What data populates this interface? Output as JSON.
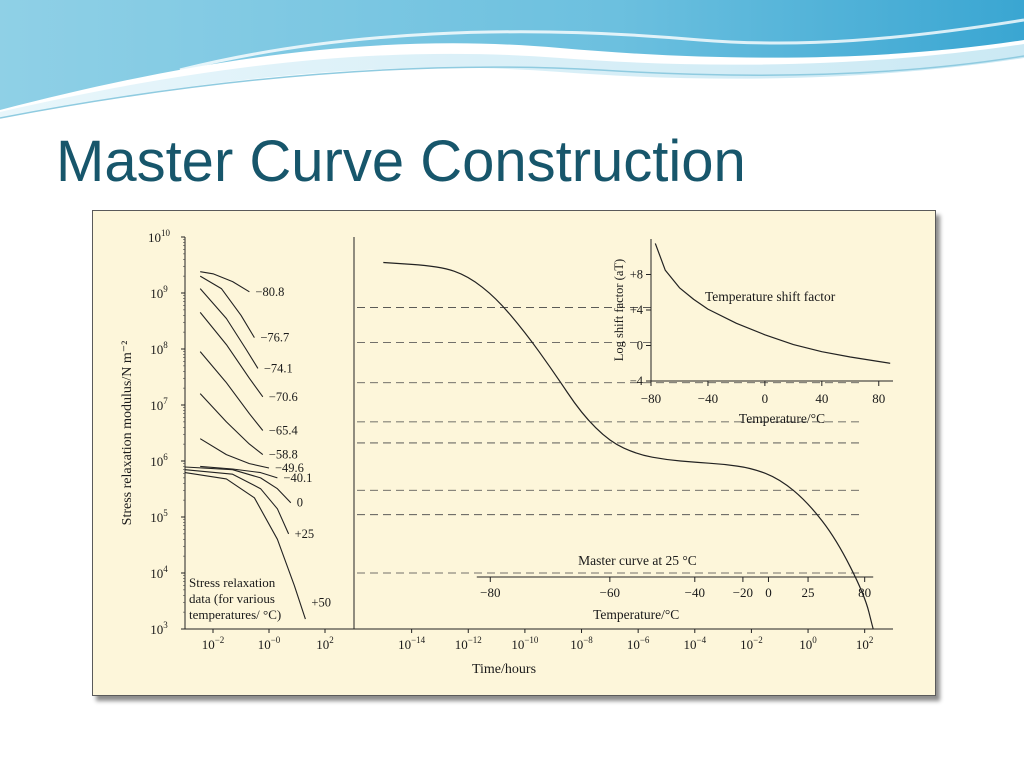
{
  "slide": {
    "title": "Master Curve Construction"
  },
  "chart_data": {
    "type": "line",
    "ylabel": "Stress relaxation modulus/N m⁻²",
    "xlabel": "Time/hours",
    "y_scale": "log",
    "ylim": [
      1000,
      10000000000
    ],
    "y_ticks": [
      {
        "value": 1000,
        "base": "10",
        "exp": "3"
      },
      {
        "value": 10000,
        "base": "10",
        "exp": "4"
      },
      {
        "value": 100000,
        "base": "10",
        "exp": "5"
      },
      {
        "value": 1000000,
        "base": "10",
        "exp": "6"
      },
      {
        "value": 10000000,
        "base": "10",
        "exp": "7"
      },
      {
        "value": 100000000,
        "base": "10",
        "exp": "8"
      },
      {
        "value": 1000000000,
        "base": "10",
        "exp": "9"
      },
      {
        "value": 10000000000,
        "base": "10",
        "exp": "10"
      }
    ],
    "panels": [
      {
        "name": "stress-relaxation-data",
        "annotation": [
          "Stress relaxation",
          "data (for various",
          "temperatures/ °C)"
        ],
        "x_scale": "log",
        "xlim": [
          0.001,
          1000
        ],
        "x_ticks": [
          {
            "value": 0.01,
            "base": "10",
            "exp": "−2"
          },
          {
            "value": 1,
            "base": "10",
            "exp": "−0"
          },
          {
            "value": 100,
            "base": "10",
            "exp": "2"
          }
        ],
        "series": [
          {
            "label": "−80.8",
            "points": [
              [
                0.0035,
                2400000000.0
              ],
              [
                0.01,
                2200000000.0
              ],
              [
                0.05,
                1600000000.0
              ],
              [
                0.2,
                1050000000.0
              ]
            ]
          },
          {
            "label": "−76.7",
            "points": [
              [
                0.0035,
                2000000000.0
              ],
              [
                0.02,
                1200000000.0
              ],
              [
                0.1,
                400000000.0
              ],
              [
                0.3,
                160000000.0
              ]
            ]
          },
          {
            "label": "−74.1",
            "points": [
              [
                0.0035,
                1200000000.0
              ],
              [
                0.03,
                350000000.0
              ],
              [
                0.15,
                100000000.0
              ],
              [
                0.4,
                45000000.0
              ]
            ]
          },
          {
            "label": "−70.6",
            "points": [
              [
                0.0035,
                450000000.0
              ],
              [
                0.03,
                120000000.0
              ],
              [
                0.2,
                30000000.0
              ],
              [
                0.6,
                14000000.0
              ]
            ]
          },
          {
            "label": "−65.4",
            "points": [
              [
                0.0035,
                90000000.0
              ],
              [
                0.03,
                25000000.0
              ],
              [
                0.2,
                7000000.0
              ],
              [
                0.6,
                3500000.0
              ]
            ]
          },
          {
            "label": "−58.8",
            "points": [
              [
                0.0035,
                16000000.0
              ],
              [
                0.03,
                5000000.0
              ],
              [
                0.2,
                2000000.0
              ],
              [
                0.6,
                1300000.0
              ]
            ]
          },
          {
            "label": "−49.6",
            "points": [
              [
                0.0035,
                2500000.0
              ],
              [
                0.03,
                1300000.0
              ],
              [
                0.2,
                900000.0
              ],
              [
                1,
                750000.0
              ]
            ]
          },
          {
            "label": "−40.1",
            "points": [
              [
                0.0035,
                800000.0
              ],
              [
                0.05,
                720000.0
              ],
              [
                0.5,
                620000.0
              ],
              [
                2,
                500000.0
              ]
            ]
          },
          {
            "label": "0",
            "points": [
              [
                0.001,
                780000.0
              ],
              [
                0.05,
                700000.0
              ],
              [
                0.5,
                500000.0
              ],
              [
                2,
                320000.0
              ],
              [
                6,
                180000.0
              ]
            ]
          },
          {
            "label": "+25",
            "points": [
              [
                0.001,
                700000.0
              ],
              [
                0.05,
                580000.0
              ],
              [
                0.5,
                320000.0
              ],
              [
                2,
                140000.0
              ],
              [
                5,
                50000.0
              ]
            ]
          },
          {
            "label": "+50",
            "points": [
              [
                0.001,
                620000.0
              ],
              [
                0.03,
                480000.0
              ],
              [
                0.3,
                220000.0
              ],
              [
                2,
                40000.0
              ],
              [
                8,
                6000.0
              ],
              [
                20,
                1500.0
              ]
            ]
          }
        ]
      },
      {
        "name": "master-curve",
        "annotation": [
          "Master curve at 25 °C"
        ],
        "x_scale": "log",
        "xlim": [
          1e-16,
          1000
        ],
        "x_ticks": [
          {
            "value": 1e-14,
            "base": "10",
            "exp": "−14"
          },
          {
            "value": 1e-12,
            "base": "10",
            "exp": "−12"
          },
          {
            "value": 1e-10,
            "base": "10",
            "exp": "−10"
          },
          {
            "value": 1e-08,
            "base": "10",
            "exp": "−8"
          },
          {
            "value": 1e-06,
            "base": "10",
            "exp": "−6"
          },
          {
            "value": 0.0001,
            "base": "10",
            "exp": "−4"
          },
          {
            "value": 0.01,
            "base": "10",
            "exp": "−2"
          },
          {
            "value": 1,
            "base": "10",
            "exp": "0"
          },
          {
            "value": 100,
            "base": "10",
            "exp": "2"
          }
        ],
        "series": [
          {
            "label": "Master curve at 25 °C",
            "points": [
              [
                1e-15,
                3500000000.0
              ],
              [
                1e-13,
                3000000000.0
              ],
              [
                1e-12,
                2000000000.0
              ],
              [
                1e-11,
                800000000.0
              ],
              [
                1e-10,
                200000000.0
              ],
              [
                1e-09,
                40000000.0
              ],
              [
                1e-08,
                7000000.0
              ],
              [
                1e-07,
                2200000.0
              ],
              [
                1e-06,
                1300000.0
              ],
              [
                1e-05,
                1050000.0
              ],
              [
                0.0001,
                950000.0
              ],
              [
                0.001,
                880000.0
              ],
              [
                0.01,
                750000.0
              ],
              [
                0.1,
                480000.0
              ],
              [
                1,
                180000.0
              ],
              [
                10,
                40000.0
              ],
              [
                100,
                4000.0
              ],
              [
                200,
                1000.0
              ]
            ]
          }
        ],
        "temperature_axis": {
          "label": "Temperature/°C",
          "ticks": [
            {
              "label": "−80",
              "t": 6e-12
            },
            {
              "label": "−60",
              "t": 1e-07
            },
            {
              "label": "−40",
              "t": 0.0001
            },
            {
              "label": "−20",
              "t": 0.005
            },
            {
              "label": "0",
              "t": 0.04
            },
            {
              "label": "25",
              "t": 1
            },
            {
              "label": "80",
              "t": 100
            }
          ]
        },
        "reference_levels": [
          550000000.0,
          130000000.0,
          25000000.0,
          5000000.0,
          2100000.0,
          300000.0,
          110000.0,
          10000.0
        ]
      }
    ],
    "inset": {
      "title": "Temperature shift factor",
      "xlabel": "Temperature/°C",
      "ylabel": "Log shift factor (aT)",
      "xlim": [
        -80,
        90
      ],
      "ylim": [
        -4,
        12
      ],
      "x_ticks": [
        "−80",
        "−40",
        "0",
        "40",
        "80"
      ],
      "x_tick_values": [
        -80,
        -40,
        0,
        40,
        80
      ],
      "y_ticks": [
        "+8",
        "+4",
        "0",
        "−4"
      ],
      "y_tick_values": [
        8,
        4,
        0,
        -4
      ],
      "series": [
        {
          "points": [
            [
              -77,
              11.5
            ],
            [
              -70,
              8.5
            ],
            [
              -60,
              6.5
            ],
            [
              -50,
              5.2
            ],
            [
              -40,
              4.1
            ],
            [
              -20,
              2.5
            ],
            [
              0,
              1.2
            ],
            [
              20,
              0.1
            ],
            [
              40,
              -0.7
            ],
            [
              60,
              -1.3
            ],
            [
              80,
              -1.8
            ],
            [
              88,
              -2.0
            ]
          ]
        }
      ]
    }
  }
}
